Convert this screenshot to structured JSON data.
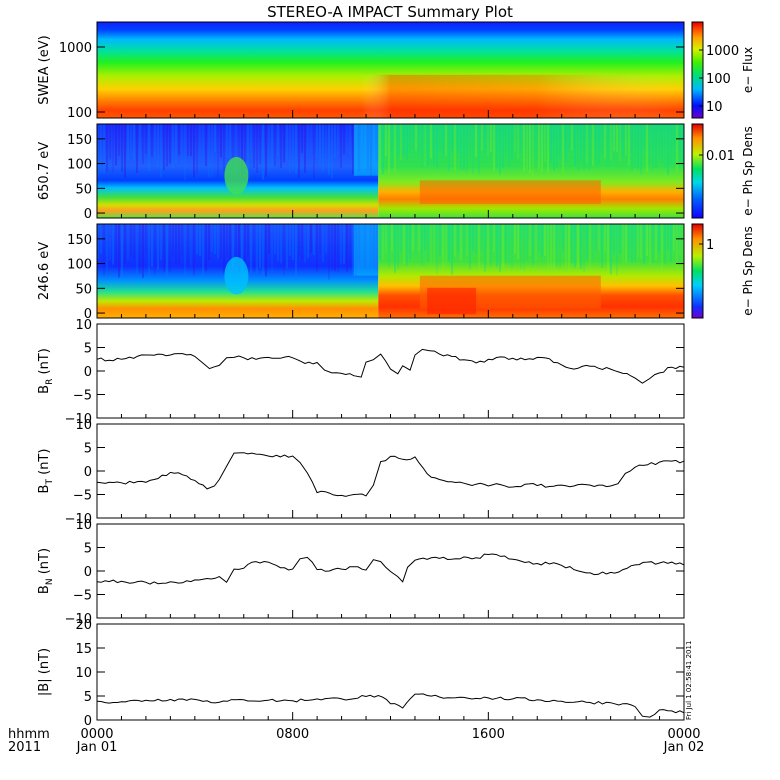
{
  "title": "STEREO-A IMPACT Summary Plot",
  "footer": {
    "corner_top": "hhmm",
    "corner_bottom": "2011",
    "x_ticks": [
      {
        "time": "0000",
        "date": "Jan 01",
        "hour": 0
      },
      {
        "time": "0800",
        "date": "",
        "hour": 8
      },
      {
        "time": "1600",
        "date": "",
        "hour": 16
      },
      {
        "time": "0000",
        "date": "Jan 02",
        "hour": 24
      }
    ],
    "timestamp": "Fri Jul 1 02:58:41 2011"
  },
  "colors": {
    "line": "#000000",
    "colormap": [
      "#6a00c8",
      "#0010ff",
      "#00b8ff",
      "#00e070",
      "#40f000",
      "#d8f000",
      "#ffa000",
      "#ff3800",
      "#d80000"
    ]
  },
  "chart_data": [
    {
      "type": "heatmap",
      "id": "swea",
      "ylabel": "SWEA (eV)",
      "yscale": "log",
      "y_ticks": [
        "1000",
        "100"
      ],
      "colorbar_label": "e− Flux",
      "colorbar_scale": "log",
      "colorbar_ticks": [
        "1000",
        "100",
        "10"
      ],
      "xlim": [
        0,
        24
      ],
      "ylim": [
        90,
        2000
      ]
    },
    {
      "type": "heatmap",
      "id": "pad650",
      "ylabel": "650.7 eV",
      "y_ticks": [
        "150",
        "100",
        "50",
        "0"
      ],
      "colorbar_label": "e− Ph Sp Dens",
      "colorbar_ticks": [
        "0.01"
      ],
      "xlim": [
        0,
        24
      ],
      "ylim": [
        -10,
        180
      ]
    },
    {
      "type": "heatmap",
      "id": "pad246",
      "ylabel": "246.6 eV",
      "y_ticks": [
        "150",
        "100",
        "50",
        "0"
      ],
      "colorbar_label": "e− Ph Sp Dens",
      "colorbar_ticks": [
        "1"
      ],
      "xlim": [
        0,
        24
      ],
      "ylim": [
        -10,
        180
      ]
    },
    {
      "type": "line",
      "id": "br",
      "ylabel": "B",
      "ylabel_sub": "R",
      "ylabel_unit": "(nT)",
      "y_ticks": [
        "10",
        "5",
        "0",
        "−5",
        "−10"
      ],
      "ylim": [
        -10,
        10
      ],
      "xlim": [
        0,
        24
      ],
      "x": [
        0,
        0.5,
        1,
        1.5,
        2,
        2.5,
        3,
        3.5,
        4,
        4.3,
        4.6,
        5,
        5.3,
        5.6,
        6,
        6.5,
        7,
        7.5,
        8,
        8.5,
        9,
        9.3,
        9.6,
        10,
        10.5,
        10.8,
        11,
        11.3,
        11.6,
        12,
        12.3,
        12.5,
        12.8,
        13,
        13.3,
        13.6,
        14,
        14.5,
        15,
        15.5,
        16,
        16.5,
        17,
        17.5,
        18,
        18.5,
        19,
        19.5,
        20,
        20.5,
        21,
        21.5,
        22,
        22.3,
        22.6,
        23,
        23.5,
        24
      ],
      "y": [
        2.5,
        2.3,
        2.5,
        2.7,
        3.4,
        3.6,
        3.4,
        3.7,
        3.1,
        1.8,
        0.5,
        1.2,
        2.8,
        2.9,
        2.8,
        2.5,
        2.9,
        2.7,
        2.8,
        1.6,
        1.8,
        0.2,
        -0.4,
        -0.5,
        -1.0,
        -1.3,
        1.9,
        2.4,
        3.6,
        0.4,
        -0.6,
        1.1,
        0.2,
        3.4,
        4.6,
        4.3,
        3.6,
        3.1,
        2.4,
        1.7,
        2.5,
        3.0,
        2.7,
        2.4,
        2.9,
        2.6,
        1.3,
        0.4,
        1.2,
        0.6,
        0.4,
        -0.5,
        -1.5,
        -2.6,
        -1.6,
        -0.4,
        0.8,
        0.8
      ]
    },
    {
      "type": "line",
      "id": "bt",
      "ylabel": "B",
      "ylabel_sub": "T",
      "ylabel_unit": "(nT)",
      "y_ticks": [
        "10",
        "5",
        "0",
        "−5",
        "−10"
      ],
      "ylim": [
        -10,
        10
      ],
      "xlim": [
        0,
        24
      ],
      "x": [
        0,
        1,
        2,
        2.5,
        3,
        3.5,
        4,
        4.5,
        4.8,
        5,
        5.3,
        5.6,
        6,
        6.5,
        7,
        7.5,
        8,
        8.3,
        8.6,
        9,
        9.5,
        10,
        10.5,
        11,
        11.3,
        11.6,
        12,
        12.5,
        13,
        13.5,
        14,
        14.5,
        15,
        15.5,
        16,
        16.5,
        17,
        17.5,
        18,
        18.5,
        19,
        19.5,
        20,
        20.5,
        21,
        21.3,
        21.6,
        22,
        22.5,
        23,
        23.5,
        24
      ],
      "y": [
        -2.4,
        -2.5,
        -2.4,
        -1.6,
        -0.3,
        -0.8,
        -2.0,
        -3.8,
        -3.2,
        -1.8,
        1.0,
        3.8,
        3.9,
        3.6,
        3.2,
        3.0,
        3.2,
        1.8,
        -0.4,
        -4.6,
        -4.7,
        -5.2,
        -5.0,
        -5.3,
        -3.0,
        2.0,
        3.1,
        2.5,
        3.0,
        -0.6,
        -1.8,
        -2.3,
        -2.6,
        -2.8,
        -3.2,
        -2.9,
        -3.4,
        -2.8,
        -3.1,
        -3.3,
        -3.0,
        -3.2,
        -2.9,
        -3.0,
        -3.2,
        -2.7,
        -0.5,
        0.8,
        1.3,
        1.9,
        2.1,
        2.1
      ]
    },
    {
      "type": "line",
      "id": "bn",
      "ylabel": "B",
      "ylabel_sub": "N",
      "ylabel_unit": "(nT)",
      "y_ticks": [
        "10",
        "5",
        "0",
        "−5",
        "−10"
      ],
      "ylim": [
        -10,
        10
      ],
      "xlim": [
        0,
        24
      ],
      "x": [
        0,
        1,
        2,
        2.5,
        3,
        3.5,
        4,
        4.5,
        5,
        5.3,
        5.6,
        6,
        6.5,
        7,
        7.5,
        8,
        8.3,
        8.6,
        9,
        9.5,
        10,
        10.5,
        11,
        11.3,
        11.6,
        12,
        12.3,
        12.5,
        12.7,
        13,
        13.5,
        14,
        14.5,
        15,
        15.5,
        16,
        16.5,
        17,
        17.5,
        18,
        18.5,
        19,
        19.5,
        20,
        20.5,
        21,
        21.5,
        22,
        22.5,
        23,
        23.5,
        24
      ],
      "y": [
        -2.3,
        -2.2,
        -2.4,
        -2.7,
        -2.3,
        -2.5,
        -1.9,
        -1.6,
        -1.2,
        -2.4,
        0.4,
        0.6,
        2.0,
        1.9,
        0.7,
        0.4,
        2.6,
        2.9,
        0.3,
        0.0,
        0.4,
        0.9,
        0.2,
        2.4,
        2.0,
        -0.1,
        -1.2,
        -2.3,
        0.8,
        2.3,
        2.5,
        2.7,
        2.5,
        3.0,
        2.8,
        3.5,
        3.1,
        2.5,
        1.8,
        1.6,
        1.5,
        1.2,
        0.3,
        -0.4,
        -0.7,
        -0.3,
        0.3,
        1.3,
        1.9,
        1.7,
        1.9,
        1.3
      ]
    },
    {
      "type": "line",
      "id": "bmag",
      "ylabel": "|B|",
      "ylabel_unit": "(nT)",
      "y_ticks": [
        "20",
        "15",
        "10",
        "5",
        "0"
      ],
      "ylim": [
        0,
        20
      ],
      "xlim": [
        0,
        24
      ],
      "x": [
        0,
        1,
        2,
        3,
        4,
        4.5,
        5,
        6,
        7,
        8,
        9,
        10,
        11,
        11.5,
        12,
        12.5,
        13,
        13.5,
        14,
        15,
        16,
        17,
        18,
        19,
        20,
        21,
        21.5,
        22,
        22.3,
        22.6,
        23,
        23.5,
        24
      ],
      "y": [
        3.9,
        3.8,
        4.1,
        4.3,
        4.3,
        4.0,
        3.7,
        4.2,
        4.1,
        4.0,
        4.4,
        4.4,
        4.9,
        5.1,
        3.4,
        2.5,
        5.4,
        5.1,
        4.8,
        4.7,
        4.6,
        4.4,
        4.2,
        3.9,
        3.7,
        3.6,
        3.4,
        2.8,
        0.8,
        0.6,
        2.1,
        1.9,
        1.5
      ]
    }
  ]
}
